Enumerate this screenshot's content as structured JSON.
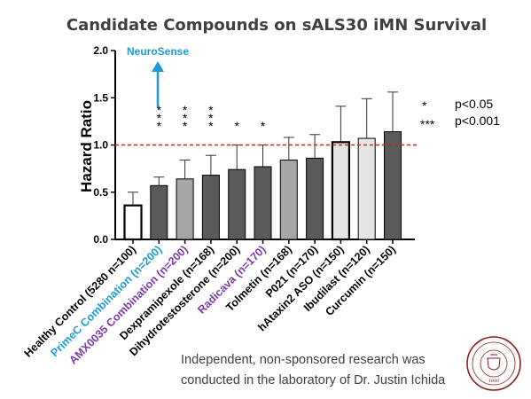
{
  "chart_data": {
    "type": "bar",
    "title": "Candidate Compounds on sALS30 iMN Survival",
    "ylabel": "Hazard Ratio",
    "xlabel": "",
    "ylim": [
      0,
      2.0
    ],
    "yticks": [
      "0.0",
      "0.5",
      "1.0",
      "1.5",
      "2.0"
    ],
    "reference_line": 1.0,
    "reference_color": "#d11f1f",
    "categories": [
      "Healthy Control (5280 n=100)",
      "PrimeC Combination (n=200)",
      "AMX0035 Combination (n=200)",
      "Dexpramipexole (n=168)",
      "Dihydrotestosterone (n=200)",
      "Radicava (n=170)",
      "Tolmetin (n=168)",
      "P021 (n=170)",
      "hAtaxin2 ASO (n=150)",
      "Ibudilast (n=120)",
      "Curcumin (n=150)"
    ],
    "category_colors": [
      "#000000",
      "#1e9bd7",
      "#7a3aa8",
      "#000000",
      "#000000",
      "#7a3aa8",
      "#000000",
      "#000000",
      "#000000",
      "#000000",
      "#000000"
    ],
    "values": [
      0.36,
      0.57,
      0.64,
      0.68,
      0.74,
      0.77,
      0.84,
      0.86,
      1.03,
      1.07,
      1.14
    ],
    "errors": [
      0.14,
      0.09,
      0.2,
      0.21,
      0.26,
      0.23,
      0.24,
      0.25,
      0.38,
      0.42,
      0.42
    ],
    "bar_colors": [
      "#ffffff",
      "#5a5a5a",
      "#a6a6a6",
      "#5a5a5a",
      "#5a5a5a",
      "#5a5a5a",
      "#a6a6a6",
      "#5a5a5a",
      "#e5e5e5",
      "#e5e5e5",
      "#5a5a5a"
    ],
    "bar_outline": [
      "thick",
      "thin",
      "thin",
      "thin",
      "thin",
      "thin",
      "thin",
      "thin",
      "thick",
      "thin",
      "thin"
    ],
    "significance": [
      "",
      "***",
      "***",
      "***",
      "*",
      "*",
      "",
      "",
      "",
      "",
      ""
    ],
    "legend": [
      {
        "symbol": "*",
        "label": "p<0.05"
      },
      {
        "symbol": "***",
        "label": "p<0.001"
      }
    ],
    "annotation": {
      "text": "NeuroSense",
      "color": "#1e9bd7"
    },
    "grid": false
  },
  "footnote": {
    "line1": "Independent, non-sponsored research was",
    "line2": "conducted in the laboratory of Dr. Justin Ichida"
  },
  "seal": {
    "text": "SOUTHERN CALIFORNIA",
    "year": "1880",
    "color": "#8c1d1d"
  }
}
